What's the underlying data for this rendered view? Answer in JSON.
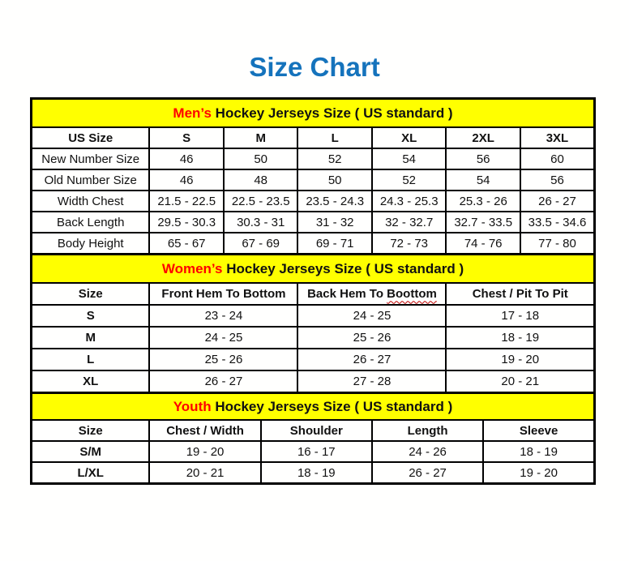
{
  "page": {
    "title": "Size Chart"
  },
  "colors": {
    "title_blue": "#1573bc",
    "section_band_bg": "#ffff00",
    "accent_red": "#ff0000",
    "table_border": "#000000",
    "spellcheck_red": "#c00000",
    "text": "#111111"
  },
  "tables": [
    {
      "id": "mens",
      "band": {
        "highlight": "Men’s",
        "rest": " Hockey Jerseys Size ( US standard )"
      },
      "header": [
        "US Size",
        "S",
        "M",
        "L",
        "XL",
        "2XL",
        "3XL"
      ],
      "rows": [
        {
          "label": "New Number Size",
          "values": [
            "46",
            "50",
            "52",
            "54",
            "56",
            "60"
          ]
        },
        {
          "label": "Old Number Size",
          "values": [
            "46",
            "48",
            "50",
            "52",
            "54",
            "56"
          ]
        },
        {
          "label": "Width Chest",
          "values": [
            "21.5 - 22.5",
            "22.5 - 23.5",
            "23.5 - 24.3",
            "24.3 - 25.3",
            "25.3 - 26",
            "26 - 27"
          ]
        },
        {
          "label": "Back Length",
          "values": [
            "29.5 - 30.3",
            "30.3 - 31",
            "31 - 32",
            "32 - 32.7",
            "32.7 - 33.5",
            "33.5 - 34.6"
          ]
        },
        {
          "label": "Body Height",
          "values": [
            "65 - 67",
            "67 - 69",
            "69 - 71",
            "72 - 73",
            "74 - 76",
            "77 - 80"
          ]
        }
      ]
    },
    {
      "id": "womens",
      "band": {
        "highlight": "Women’s",
        "rest": " Hockey Jerseys Size ( US standard )"
      },
      "header": [
        "Size",
        "Front Hem To Bottom",
        "Back Hem To Boottom",
        "Chest / Pit To Pit"
      ],
      "header_wavy": {
        "index": 2,
        "word": "Boottom"
      },
      "rows": [
        {
          "label": "S",
          "values": [
            "23 - 24",
            "24 - 25",
            "17 - 18"
          ]
        },
        {
          "label": "M",
          "values": [
            "24 - 25",
            "25 - 26",
            "18 - 19"
          ]
        },
        {
          "label": "L",
          "values": [
            "25 - 26",
            "26 - 27",
            "19 - 20"
          ]
        },
        {
          "label": "XL",
          "values": [
            "26 - 27",
            "27 - 28",
            "20 - 21"
          ]
        }
      ]
    },
    {
      "id": "youth",
      "band": {
        "highlight": "Youth",
        "rest": " Hockey Jerseys Size ( US standard )"
      },
      "header": [
        "Size",
        "Chest / Width",
        "Shoulder",
        "Length",
        "Sleeve"
      ],
      "rows": [
        {
          "label": "S/M",
          "values": [
            "19 - 20",
            "16 - 17",
            "24 - 26",
            "18 - 19"
          ]
        },
        {
          "label": "L/XL",
          "values": [
            "20 - 21",
            "18 - 19",
            "26 - 27",
            "19 - 20"
          ]
        }
      ]
    }
  ]
}
